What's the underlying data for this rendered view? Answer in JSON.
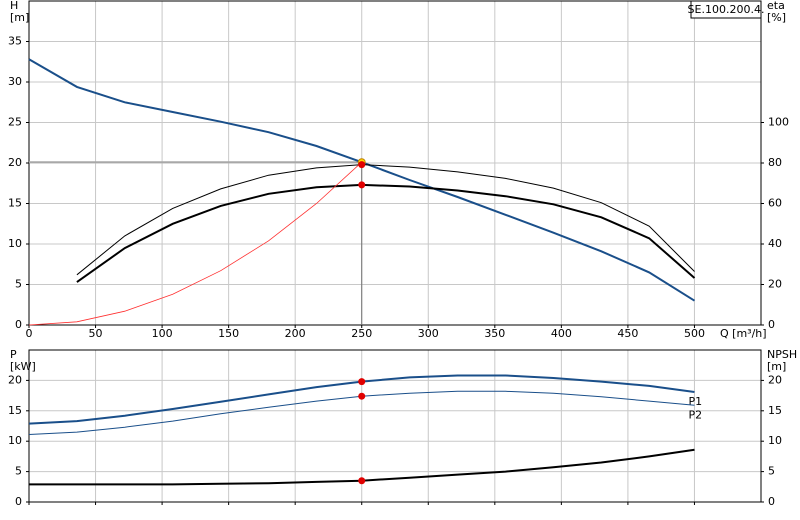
{
  "chart_data": [
    {
      "type": "line",
      "box_label": "SE.100.200.4.",
      "ylabel": "H",
      "yunit": "[m]",
      "y2label": "eta",
      "y2unit": "[%]",
      "xlabel": "Q [m³/h]",
      "x": [
        0,
        36,
        72,
        108,
        144,
        180,
        216,
        250,
        286,
        322,
        358,
        394,
        430,
        466,
        500
      ],
      "xlim": [
        0,
        550
      ],
      "xticks": [
        0,
        50,
        100,
        150,
        200,
        250,
        300,
        350,
        400,
        450,
        500
      ],
      "ylim": [
        0,
        40
      ],
      "yticks": [
        0,
        5,
        10,
        15,
        20,
        25,
        30,
        35
      ],
      "y2lim": [
        0,
        160
      ],
      "y2ticks": [
        0,
        20,
        40,
        60,
        80,
        100
      ],
      "grid": true,
      "series": [
        {
          "color": "#1a4f8a",
          "width": 2,
          "values": [
            32.8,
            29.4,
            27.5,
            26.3,
            25.1,
            23.8,
            22.1,
            20.1,
            17.9,
            15.8,
            13.6,
            11.4,
            9.1,
            6.5,
            3.0
          ]
        },
        {
          "color": "#000000",
          "width": 1,
          "axis": "y2",
          "values": [
            null,
            24.8,
            44,
            57.6,
            67.2,
            74,
            77.6,
            79.2,
            78,
            75.6,
            72.4,
            67.6,
            60.4,
            48.8,
            26.4
          ]
        },
        {
          "color": "#000000",
          "width": 2,
          "axis": "y2",
          "values": [
            null,
            21.2,
            38,
            50,
            58.8,
            64.8,
            68,
            69.2,
            68.4,
            66.4,
            63.6,
            59.6,
            53.2,
            42.8,
            23.2
          ]
        },
        {
          "color": "#ff3030",
          "width": 0.8,
          "values": [
            0,
            0.4,
            1.7,
            3.8,
            6.7,
            10.4,
            15.0,
            20.1,
            null,
            null,
            null,
            null,
            null,
            null,
            null
          ]
        }
      ],
      "points": [
        {
          "x": 250,
          "y": 20.1,
          "color": "#ffd700",
          "guide": true
        },
        {
          "x": 250,
          "y": 79.2,
          "axis": "y2",
          "color": "#e00000"
        },
        {
          "x": 250,
          "y": 69.2,
          "axis": "y2",
          "color": "#e00000"
        }
      ]
    },
    {
      "type": "line",
      "ylabel": "P",
      "yunit": "[kW]",
      "y2label": "NPSH",
      "y2unit": "[m]",
      "x": [
        0,
        36,
        72,
        108,
        144,
        180,
        216,
        250,
        286,
        322,
        358,
        394,
        430,
        466,
        500
      ],
      "xlim": [
        0,
        550
      ],
      "xticks": [
        0,
        50,
        100,
        150,
        200,
        250,
        300,
        350,
        400,
        450,
        500
      ],
      "ylim": [
        0,
        25
      ],
      "yticks": [
        0,
        5,
        10,
        15,
        20
      ],
      "y2lim": [
        0,
        25
      ],
      "y2ticks": [
        0,
        5,
        10,
        15,
        20
      ],
      "grid": true,
      "series": [
        {
          "name": "P1",
          "color": "#1a4f8a",
          "width": 2,
          "values": [
            12.9,
            13.3,
            14.2,
            15.3,
            16.5,
            17.7,
            18.9,
            19.8,
            20.5,
            20.8,
            20.8,
            20.4,
            19.8,
            19.1,
            18.1
          ]
        },
        {
          "name": "P2",
          "color": "#1a4f8a",
          "width": 1,
          "values": [
            11.1,
            11.5,
            12.3,
            13.3,
            14.5,
            15.6,
            16.6,
            17.4,
            17.9,
            18.2,
            18.2,
            17.9,
            17.3,
            16.6,
            15.9
          ]
        },
        {
          "color": "#000000",
          "width": 2,
          "axis": "y2",
          "values": [
            2.9,
            2.9,
            2.9,
            2.9,
            3.0,
            3.1,
            3.3,
            3.5,
            4.0,
            4.5,
            5.0,
            5.7,
            6.5,
            7.5,
            8.6
          ]
        }
      ],
      "points": [
        {
          "x": 250,
          "y": 19.8,
          "color": "#e00000"
        },
        {
          "x": 250,
          "y": 17.4,
          "color": "#e00000"
        },
        {
          "x": 250,
          "y": 3.5,
          "axis": "y2",
          "color": "#e00000"
        }
      ]
    }
  ]
}
